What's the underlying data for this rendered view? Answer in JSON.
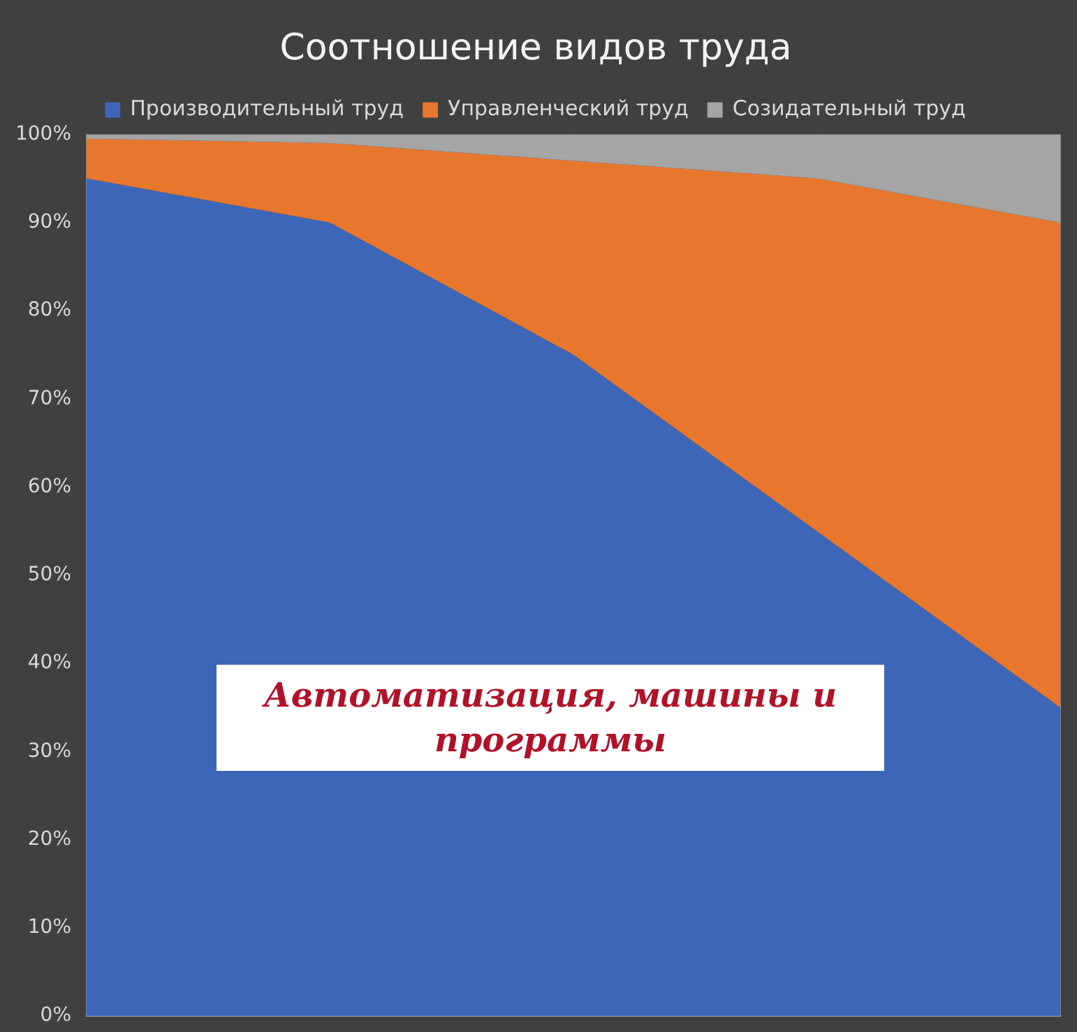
{
  "chart_data": {
    "type": "area",
    "title": "Соотношение видов труда",
    "categories": [
      null,
      null,
      null,
      null,
      null
    ],
    "stacked": true,
    "series": [
      {
        "name": "Производительный труд",
        "color": "#3d66b8",
        "values": [
          95,
          90,
          75,
          55,
          35
        ]
      },
      {
        "name": "Управленческий труд",
        "color": "#e8772e",
        "values": [
          4.5,
          9,
          22,
          40,
          55
        ]
      },
      {
        "name": "Созидательный труд",
        "color": "#a5a5a5",
        "values": [
          0.5,
          1,
          3,
          5,
          10
        ]
      }
    ],
    "ylim": [
      0,
      100
    ],
    "yticks": [
      {
        "value": 0,
        "label": "0%"
      },
      {
        "value": 10,
        "label": "10%"
      },
      {
        "value": 20,
        "label": "20%"
      },
      {
        "value": 30,
        "label": "30%"
      },
      {
        "value": 40,
        "label": "40%"
      },
      {
        "value": 50,
        "label": "50%"
      },
      {
        "value": 60,
        "label": "60%"
      },
      {
        "value": 70,
        "label": "70%"
      },
      {
        "value": 80,
        "label": "80%"
      },
      {
        "value": 90,
        "label": "90%"
      },
      {
        "value": 100,
        "label": "100%"
      }
    ],
    "grid": "x",
    "legend": "top",
    "annotations": [
      "Автоматизация, машины и программы"
    ]
  }
}
